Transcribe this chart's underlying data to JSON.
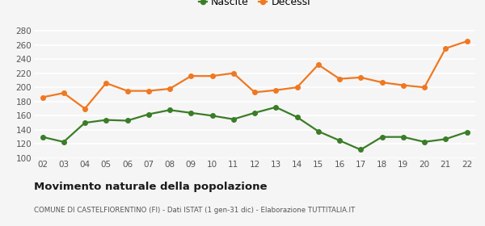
{
  "years": [
    "02",
    "03",
    "04",
    "05",
    "06",
    "07",
    "08",
    "09",
    "10",
    "11",
    "12",
    "13",
    "14",
    "15",
    "16",
    "17",
    "18",
    "19",
    "20",
    "21",
    "22"
  ],
  "nascite": [
    130,
    123,
    150,
    154,
    153,
    162,
    168,
    164,
    160,
    155,
    164,
    172,
    158,
    138,
    125,
    112,
    130,
    130,
    123,
    127,
    137
  ],
  "decessi": [
    186,
    192,
    170,
    206,
    195,
    195,
    198,
    216,
    216,
    220,
    193,
    196,
    200,
    232,
    212,
    214,
    207,
    203,
    200,
    255,
    265
  ],
  "nascite_color": "#3a7d27",
  "decessi_color": "#f07820",
  "background_color": "#f5f5f5",
  "grid_color": "#ffffff",
  "title": "Movimento naturale della popolazione",
  "subtitle": "COMUNE DI CASTELFIORENTINO (FI) - Dati ISTAT (1 gen-31 dic) - Elaborazione TUTTITALIA.IT",
  "legend_nascite": "Nascite",
  "legend_decessi": "Decessi",
  "ylim": [
    100,
    285
  ],
  "yticks": [
    100,
    120,
    140,
    160,
    180,
    200,
    220,
    240,
    260,
    280
  ],
  "marker_size": 4,
  "line_width": 1.6
}
